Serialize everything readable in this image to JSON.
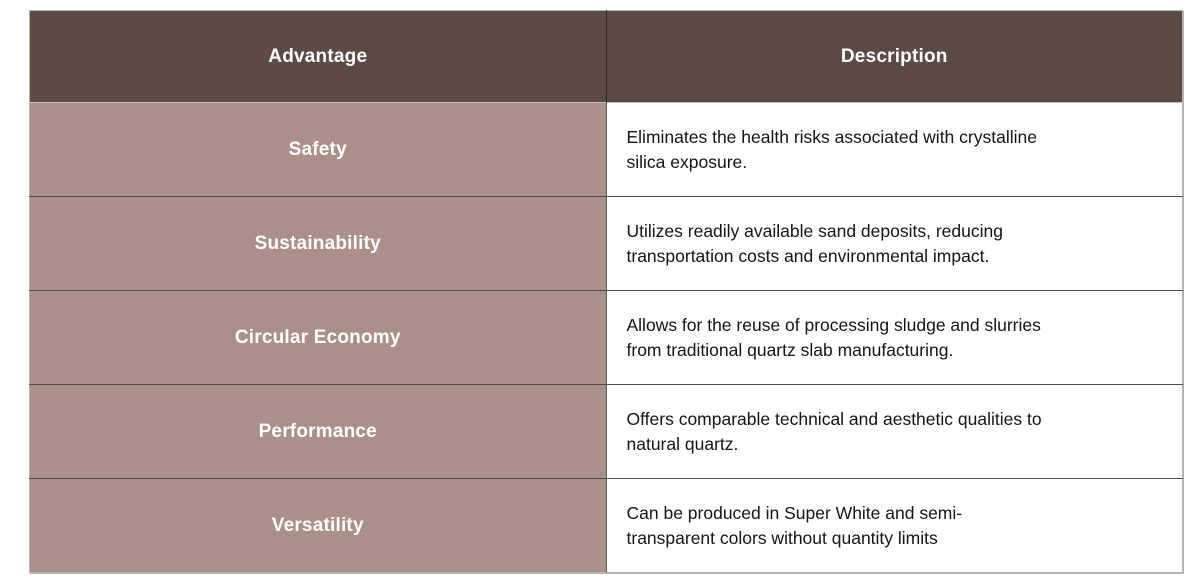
{
  "table": {
    "columns": [
      {
        "label": "Advantage"
      },
      {
        "label": "Description"
      }
    ],
    "rows": [
      {
        "advantage": "Safety",
        "description": "Eliminates the health risks associated with crystalline\nsilica exposure."
      },
      {
        "advantage": "Sustainability",
        "description": "Utilizes readily available sand deposits, reducing\ntransportation costs and environmental impact."
      },
      {
        "advantage": "Circular Economy",
        "description": "Allows for the reuse of processing sludge and slurries\nfrom traditional quartz slab manufacturing."
      },
      {
        "advantage": "Performance",
        "description": "Offers comparable technical and aesthetic qualities to\nnatural quartz."
      },
      {
        "advantage": "Versatility",
        "description": "Can be produced in Super White and semi-\ntransparent colors without quantity limits"
      }
    ],
    "colors": {
      "header_background": "#5b4b43",
      "header_text": "#ffffff",
      "advantage_background": "#ab9089",
      "advantage_text": "#ffffff",
      "description_background": "#ffffff",
      "description_text": "#141414",
      "inner_border": "#4d4d4d",
      "outer_border": "#b8b8b8"
    }
  }
}
